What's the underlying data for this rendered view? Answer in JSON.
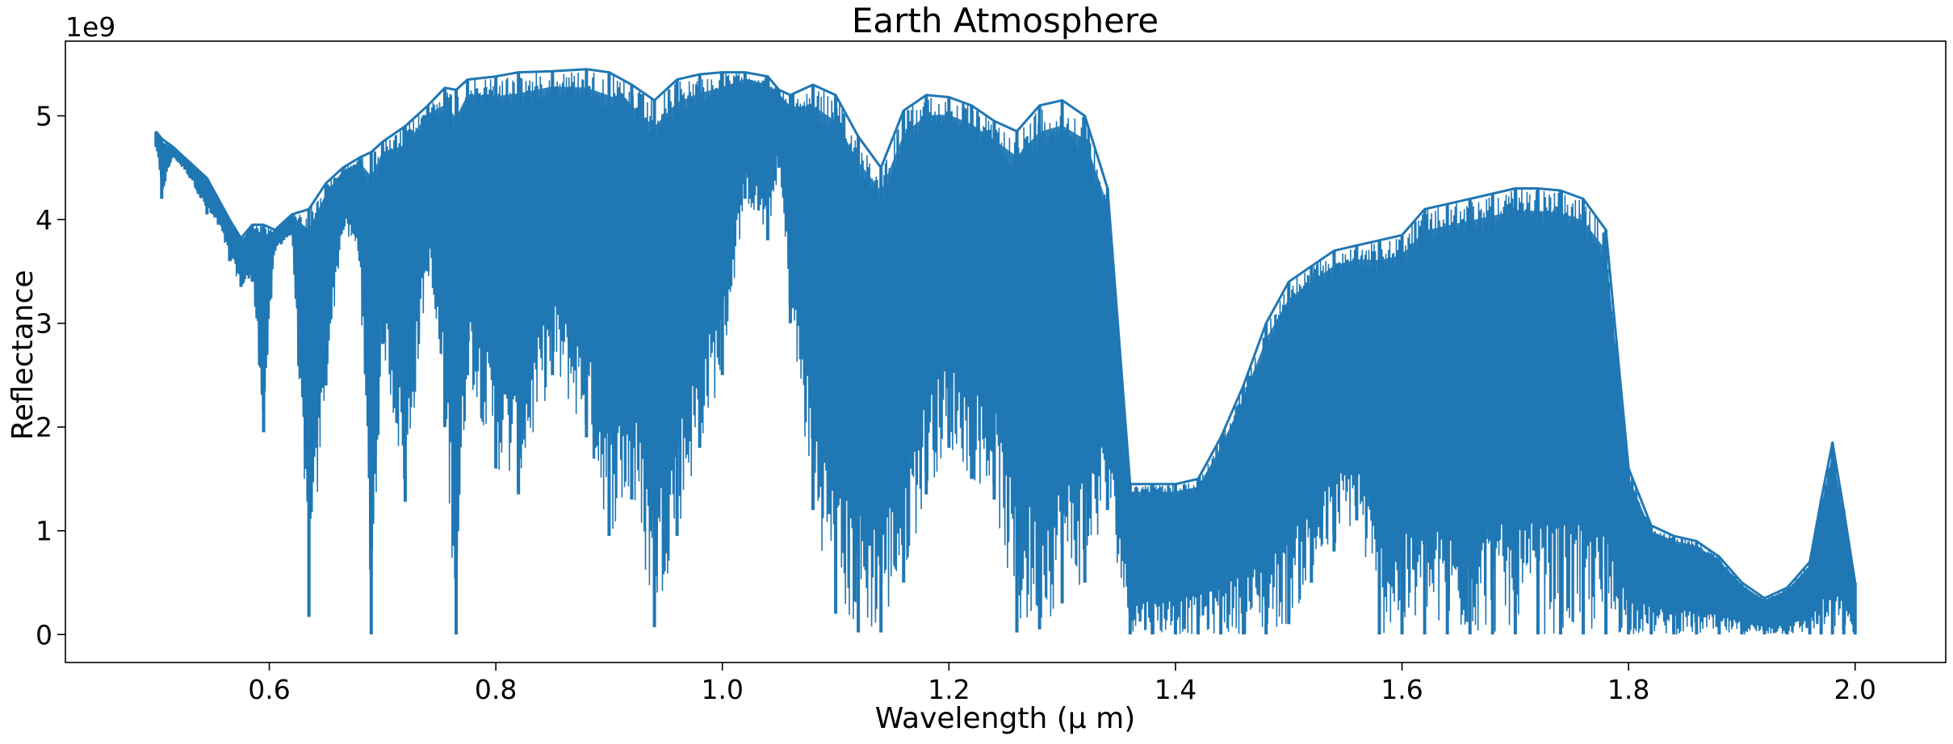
{
  "chart_data": {
    "type": "line",
    "title": "Earth Atmosphere",
    "xlabel": "Wavelength (μ m)",
    "ylabel": "Reflectance",
    "y_offset_text": "1e9",
    "xlim": [
      0.42,
      2.08
    ],
    "ylim": [
      -0.27,
      5.72
    ],
    "x_ticks": [
      0.6,
      0.8,
      1.0,
      1.2,
      1.4,
      1.6,
      1.8,
      2.0
    ],
    "x_tick_labels": [
      "0.6",
      "0.8",
      "1.0",
      "1.2",
      "1.4",
      "1.6",
      "1.8",
      "2.0"
    ],
    "y_ticks": [
      0,
      1,
      2,
      3,
      4,
      5
    ],
    "y_tick_labels": [
      "0",
      "1",
      "2",
      "3",
      "4",
      "5"
    ],
    "y_unit_scale": 1000000000,
    "grid": false,
    "legend": false,
    "line_color": "#1f77b4",
    "series": [
      {
        "description": "Upper envelope of densely sampled reflectance spectrum (units of 1e9)",
        "x": [
          0.5,
          0.505,
          0.515,
          0.53,
          0.545,
          0.555,
          0.565,
          0.575,
          0.585,
          0.595,
          0.605,
          0.62,
          0.635,
          0.65,
          0.665,
          0.68,
          0.69,
          0.7,
          0.72,
          0.74,
          0.755,
          0.765,
          0.775,
          0.8,
          0.82,
          0.85,
          0.88,
          0.9,
          0.92,
          0.94,
          0.96,
          0.98,
          1.0,
          1.02,
          1.04,
          1.05,
          1.06,
          1.08,
          1.1,
          1.12,
          1.14,
          1.16,
          1.18,
          1.2,
          1.22,
          1.24,
          1.26,
          1.28,
          1.3,
          1.32,
          1.34,
          1.36,
          1.38,
          1.4,
          1.42,
          1.44,
          1.46,
          1.48,
          1.5,
          1.52,
          1.54,
          1.56,
          1.58,
          1.6,
          1.62,
          1.64,
          1.66,
          1.68,
          1.7,
          1.72,
          1.74,
          1.76,
          1.78,
          1.8,
          1.82,
          1.84,
          1.86,
          1.88,
          1.9,
          1.92,
          1.94,
          1.96,
          1.97,
          1.98,
          1.99,
          2.0
        ],
        "y_upper": [
          4.85,
          4.78,
          4.7,
          4.55,
          4.4,
          4.2,
          4.0,
          3.82,
          3.95,
          3.95,
          3.9,
          4.05,
          4.1,
          4.35,
          4.5,
          4.6,
          4.65,
          4.75,
          4.9,
          5.1,
          5.27,
          5.25,
          5.35,
          5.38,
          5.42,
          5.43,
          5.45,
          5.42,
          5.3,
          5.15,
          5.35,
          5.4,
          5.42,
          5.42,
          5.38,
          5.25,
          5.2,
          5.3,
          5.2,
          4.8,
          4.5,
          5.05,
          5.2,
          5.18,
          5.1,
          4.95,
          4.85,
          5.1,
          5.15,
          5.0,
          4.3,
          1.45,
          1.45,
          1.45,
          1.5,
          1.9,
          2.4,
          3.0,
          3.4,
          3.55,
          3.7,
          3.75,
          3.8,
          3.85,
          4.1,
          4.15,
          4.2,
          4.25,
          4.3,
          4.3,
          4.28,
          4.2,
          3.9,
          1.6,
          1.05,
          0.95,
          0.9,
          0.75,
          0.5,
          0.35,
          0.45,
          0.7,
          1.3,
          1.85,
          1.2,
          0.5
        ],
        "y_lower": [
          4.7,
          4.2,
          4.6,
          4.4,
          4.05,
          3.95,
          3.6,
          3.35,
          3.4,
          1.95,
          3.7,
          3.85,
          0.17,
          2.4,
          3.9,
          3.6,
          0.0,
          2.8,
          1.28,
          3.5,
          2.0,
          0.0,
          2.5,
          1.6,
          1.35,
          2.5,
          1.9,
          0.95,
          1.3,
          0.07,
          0.95,
          1.8,
          2.5,
          4.2,
          3.8,
          4.5,
          3.0,
          1.2,
          0.2,
          0.02,
          0.02,
          0.5,
          1.35,
          1.8,
          1.5,
          1.3,
          0.02,
          0.05,
          0.3,
          0.5,
          1.2,
          0.0,
          0.0,
          0.0,
          0.0,
          0.0,
          0.0,
          0.0,
          0.1,
          0.5,
          0.8,
          1.1,
          0.0,
          0.0,
          0.0,
          0.0,
          0.0,
          0.0,
          0.0,
          0.0,
          0.0,
          0.0,
          0.0,
          0.0,
          0.0,
          0.0,
          0.0,
          0.0,
          0.0,
          0.0,
          0.0,
          0.0,
          0.0,
          0.0,
          0.0,
          0.0
        ]
      }
    ]
  }
}
